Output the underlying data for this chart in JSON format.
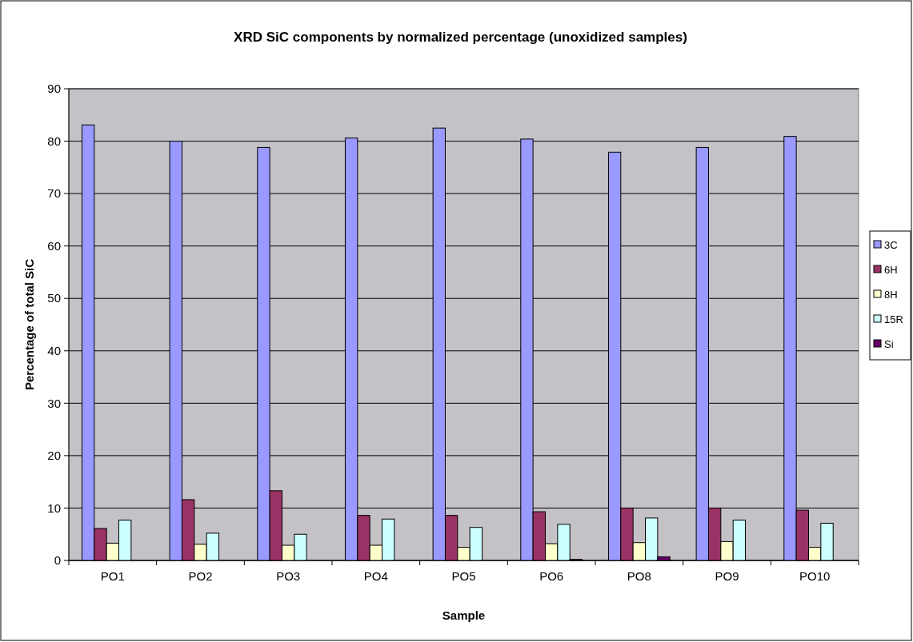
{
  "chart_data": {
    "type": "bar",
    "title": "XRD SiC components by normalized percentage (unoxidized samples)",
    "xlabel": "Sample",
    "ylabel": "Percentage of total SiC",
    "categories": [
      "PO1",
      "PO2",
      "PO3",
      "PO4",
      "PO5",
      "PO6",
      "PO8",
      "PO9",
      "PO10"
    ],
    "series": [
      {
        "name": "3C",
        "color": "#9999ff",
        "values": [
          83.1,
          80.0,
          78.8,
          80.6,
          82.5,
          80.4,
          77.9,
          78.8,
          80.9
        ]
      },
      {
        "name": "6H",
        "color": "#993366",
        "values": [
          6.1,
          11.6,
          13.3,
          8.6,
          8.6,
          9.3,
          10.0,
          10.0,
          9.6
        ]
      },
      {
        "name": "8H",
        "color": "#ffffcc",
        "values": [
          3.3,
          3.1,
          2.9,
          2.9,
          2.5,
          3.2,
          3.4,
          3.6,
          2.5
        ]
      },
      {
        "name": "15R",
        "color": "#ccffff",
        "values": [
          7.7,
          5.2,
          5.0,
          7.9,
          6.3,
          6.9,
          8.1,
          7.7,
          7.1
        ]
      },
      {
        "name": "Si",
        "color": "#660066",
        "values": [
          0,
          0,
          0,
          0,
          0,
          0.2,
          0.7,
          0,
          0
        ]
      }
    ],
    "ylim": [
      0,
      90
    ],
    "yticks": [
      0,
      10,
      20,
      30,
      40,
      50,
      60,
      70,
      80,
      90
    ],
    "grid": "y",
    "legend": "right"
  }
}
